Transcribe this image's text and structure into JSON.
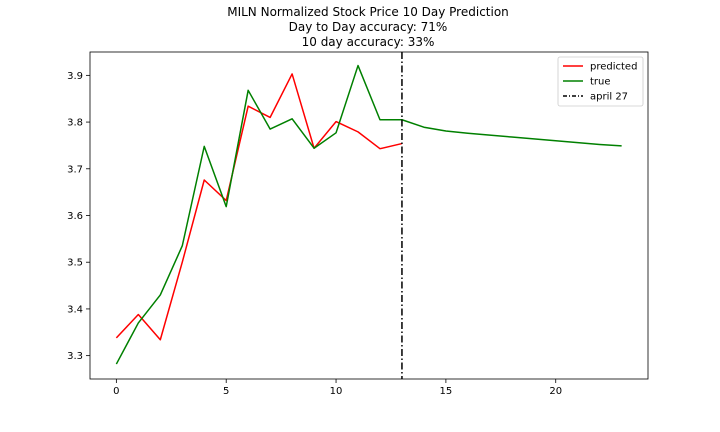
{
  "chart_data": {
    "type": "line",
    "title_lines": [
      "MILN Normalized Stock Price 10 Day Prediction",
      "Day to Day accuracy: 71%",
      "10 day accuracy: 33%"
    ],
    "xlabel": "",
    "ylabel": "",
    "xlim": [
      -1.2,
      24.2
    ],
    "ylim": [
      3.25,
      3.95
    ],
    "xticks": [
      0,
      5,
      10,
      15,
      20
    ],
    "yticks": [
      3.3,
      3.4,
      3.5,
      3.6,
      3.7,
      3.8,
      3.9
    ],
    "grid": false,
    "legend_position": "top-right",
    "series": [
      {
        "name": "predicted",
        "color": "#ff0000",
        "x": [
          0,
          1,
          2,
          3,
          4,
          5,
          6,
          7,
          8,
          9,
          10,
          11,
          12,
          13
        ],
        "y": [
          3.338,
          3.388,
          3.334,
          3.5,
          3.676,
          3.632,
          3.834,
          3.81,
          3.903,
          3.744,
          3.801,
          3.779,
          3.743,
          3.754
        ]
      },
      {
        "name": "true",
        "color": "#008000",
        "x": [
          0,
          1,
          2,
          3,
          4,
          5,
          6,
          7,
          8,
          9,
          10,
          11,
          12,
          13,
          14,
          15,
          16,
          17,
          18,
          19,
          20,
          21,
          22,
          23
        ],
        "y": [
          3.282,
          3.37,
          3.43,
          3.535,
          3.748,
          3.619,
          3.868,
          3.785,
          3.807,
          3.744,
          3.777,
          3.921,
          3.805,
          3.805,
          3.789,
          3.781,
          3.776,
          3.772,
          3.768,
          3.764,
          3.76,
          3.756,
          3.752,
          3.749
        ]
      }
    ],
    "vline": {
      "x": 13,
      "name": "april 27",
      "color": "#000000"
    }
  }
}
